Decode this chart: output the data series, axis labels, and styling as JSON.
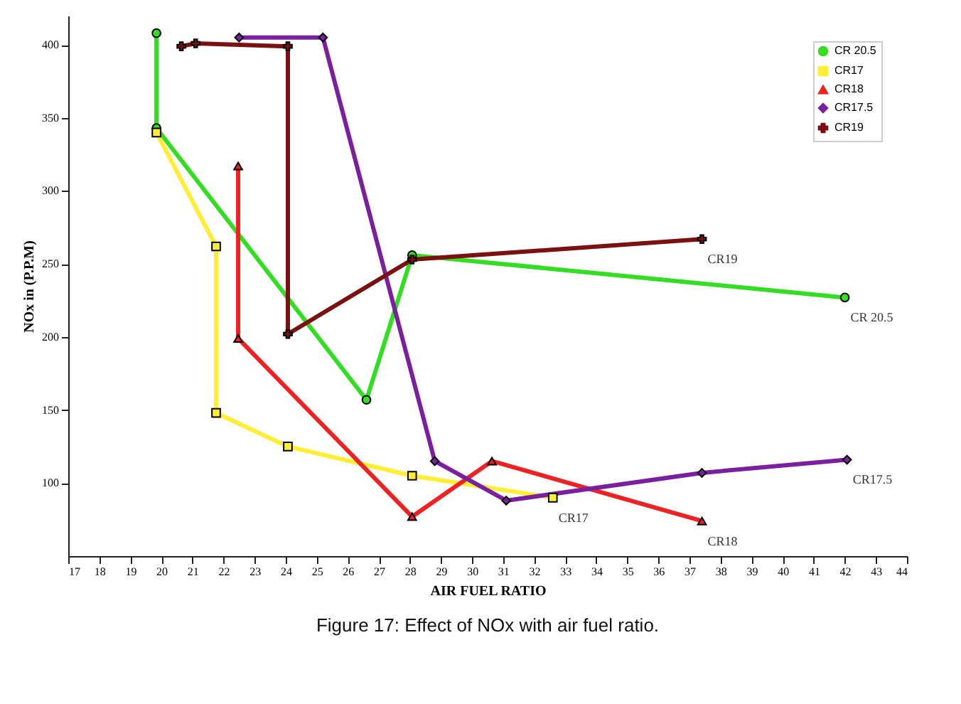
{
  "chart_data": {
    "type": "line",
    "title": "Figure 17: Effect of NOx with air fuel ratio.",
    "xlabel": "AIR FUEL RATIO",
    "ylabel": "NOx in (P.P.M)",
    "xlim": [
      17,
      44
    ],
    "xticks": [
      17,
      18,
      19,
      20,
      21,
      22,
      23,
      24,
      25,
      26,
      27,
      28,
      29,
      30,
      31,
      32,
      33,
      34,
      35,
      36,
      37,
      38,
      39,
      40,
      41,
      42,
      43,
      44
    ],
    "ylim": [
      50,
      420
    ],
    "yticks": [
      100,
      150,
      200,
      250,
      300,
      350,
      400
    ],
    "legend": "top right",
    "grid": false,
    "series": [
      {
        "name": "CR 20.5",
        "color": "#33dd22",
        "marker": "circle",
        "x": [
          19.84,
          19.84,
          26.6,
          28.07,
          42
        ],
        "values": [
          408,
          343,
          157,
          256,
          227
        ]
      },
      {
        "name": "CR17",
        "color": "#ffee33",
        "marker": "square",
        "x": [
          19.84,
          21.76,
          21.76,
          24.07,
          28.07,
          32.6
        ],
        "values": [
          340,
          262,
          148,
          125,
          105,
          90
        ]
      },
      {
        "name": "CR18",
        "color": "#ee2222",
        "marker": "triangle",
        "x": [
          22.47,
          22.47,
          28.07,
          30.64,
          37.4
        ],
        "values": [
          317,
          199,
          77,
          115,
          74
        ]
      },
      {
        "name": "CR17.5",
        "color": "#7a1fa0",
        "marker": "diamond",
        "x": [
          22.5,
          25.2,
          28.8,
          31.1,
          37.4,
          42.07
        ],
        "values": [
          405,
          405,
          115,
          88,
          107,
          116
        ]
      },
      {
        "name": "CR19",
        "color": "#7a1010",
        "marker": "cross",
        "x": [
          20.64,
          21.1,
          24.07,
          24.07,
          28.07,
          37.4
        ],
        "values": [
          399,
          401,
          399,
          202,
          253,
          267
        ]
      }
    ],
    "annotations": [
      "CR 20.5",
      "CR17",
      "CR18",
      "CR17.5",
      "CR19"
    ]
  }
}
